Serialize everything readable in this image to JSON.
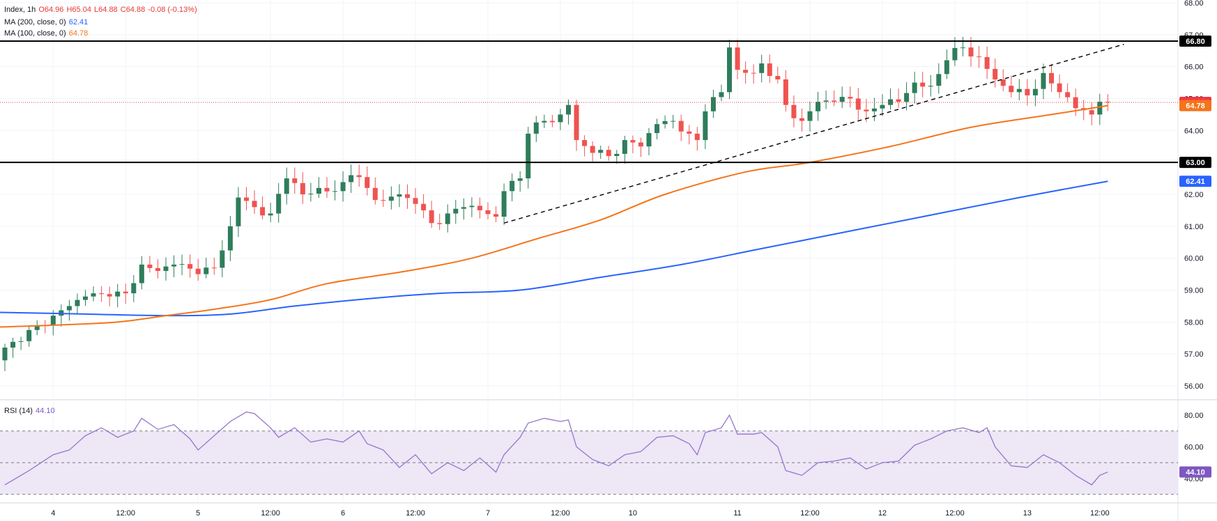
{
  "legend": {
    "symbol": "Index, 1h",
    "open": "O64.96",
    "high": "H65.04",
    "low": "L64.88",
    "close": "C64.88",
    "change": "-0.08 (-0.13%)",
    "ma200_label": "MA (200, close, 0)",
    "ma200_value": "62.41",
    "ma100_label": "MA (100, close, 0)",
    "ma100_value": "64.78",
    "rsi_label": "RSI (14)",
    "rsi_value": "44.10"
  },
  "chart_data": [
    {
      "type": "candlestick",
      "title": "",
      "y_ticks": [
        "56.00",
        "57.00",
        "58.00",
        "59.00",
        "60.00",
        "61.00",
        "62.00",
        "63.00",
        "64.00",
        "65.00",
        "66.00",
        "67.00",
        "68.00"
      ],
      "ylim": [
        55.6,
        68.0
      ],
      "x_ticks": [
        {
          "label": "4",
          "pos": 6
        },
        {
          "label": "12:00",
          "pos": 15
        },
        {
          "label": "5",
          "pos": 24
        },
        {
          "label": "12:00",
          "pos": 33
        },
        {
          "label": "6",
          "pos": 42
        },
        {
          "label": "12:00",
          "pos": 51
        },
        {
          "label": "7",
          "pos": 60
        },
        {
          "label": "12:00",
          "pos": 69
        },
        {
          "label": "10",
          "pos": 78
        },
        {
          "label": "11",
          "pos": 91
        },
        {
          "label": "12:00",
          "pos": 100
        },
        {
          "label": "12",
          "pos": 109
        },
        {
          "label": "12:00",
          "pos": 118
        },
        {
          "label": "13",
          "pos": 127
        },
        {
          "label": "12:00",
          "pos": 136
        }
      ],
      "horizontal_levels": [
        {
          "value": 66.8,
          "label": "66.80"
        },
        {
          "value": 63.0,
          "label": "63.00"
        }
      ],
      "current_price": {
        "value": 64.88,
        "label": "64.88",
        "color": "#f23645"
      },
      "price_labels": [
        {
          "value": 64.78,
          "label": "64.78",
          "color": "#f5741a"
        },
        {
          "value": 62.41,
          "label": "62.41",
          "color": "#2962ff"
        }
      ],
      "trendline": {
        "x1": 62,
        "y1": 61.1,
        "x2": 139,
        "y2": 66.7
      },
      "key_points": [
        {
          "i": 0,
          "v": 57.2
        },
        {
          "i": 2,
          "v": 57.4
        },
        {
          "i": 4,
          "v": 57.9
        },
        {
          "i": 6,
          "v": 58.2
        },
        {
          "i": 8,
          "v": 58.5
        },
        {
          "i": 10,
          "v": 58.8
        },
        {
          "i": 13,
          "v": 58.8
        },
        {
          "i": 15,
          "v": 58.9
        },
        {
          "i": 17,
          "v": 59.8
        },
        {
          "i": 19,
          "v": 59.6
        },
        {
          "i": 21,
          "v": 59.8
        },
        {
          "i": 24,
          "v": 59.5
        },
        {
          "i": 26,
          "v": 59.7
        },
        {
          "i": 28,
          "v": 61.0
        },
        {
          "i": 29,
          "v": 61.9
        },
        {
          "i": 31,
          "v": 61.6
        },
        {
          "i": 33,
          "v": 61.4
        },
        {
          "i": 35,
          "v": 62.5
        },
        {
          "i": 37,
          "v": 62.0
        },
        {
          "i": 39,
          "v": 62.2
        },
        {
          "i": 41,
          "v": 62.1
        },
        {
          "i": 43,
          "v": 62.6
        },
        {
          "i": 45,
          "v": 62.2
        },
        {
          "i": 47,
          "v": 61.8
        },
        {
          "i": 49,
          "v": 62.0
        },
        {
          "i": 51,
          "v": 61.7
        },
        {
          "i": 53,
          "v": 61.1
        },
        {
          "i": 55,
          "v": 61.4
        },
        {
          "i": 57,
          "v": 61.6
        },
        {
          "i": 59,
          "v": 61.5
        },
        {
          "i": 61,
          "v": 61.3
        },
        {
          "i": 62,
          "v": 62.1
        },
        {
          "i": 64,
          "v": 62.5
        },
        {
          "i": 65,
          "v": 63.9
        },
        {
          "i": 67,
          "v": 64.3
        },
        {
          "i": 69,
          "v": 64.5
        },
        {
          "i": 70,
          "v": 64.8
        },
        {
          "i": 71,
          "v": 63.7
        },
        {
          "i": 73,
          "v": 63.3
        },
        {
          "i": 75,
          "v": 63.2
        },
        {
          "i": 77,
          "v": 63.7
        },
        {
          "i": 79,
          "v": 63.5
        },
        {
          "i": 81,
          "v": 64.2
        },
        {
          "i": 83,
          "v": 64.3
        },
        {
          "i": 85,
          "v": 63.9
        },
        {
          "i": 86,
          "v": 63.7
        },
        {
          "i": 87,
          "v": 64.6
        },
        {
          "i": 89,
          "v": 65.2
        },
        {
          "i": 90,
          "v": 66.6
        },
        {
          "i": 91,
          "v": 65.9
        },
        {
          "i": 93,
          "v": 65.8
        },
        {
          "i": 94,
          "v": 66.1
        },
        {
          "i": 96,
          "v": 65.6
        },
        {
          "i": 97,
          "v": 64.8
        },
        {
          "i": 99,
          "v": 64.3
        },
        {
          "i": 101,
          "v": 64.9
        },
        {
          "i": 103,
          "v": 64.9
        },
        {
          "i": 105,
          "v": 65.0
        },
        {
          "i": 107,
          "v": 64.6
        },
        {
          "i": 109,
          "v": 64.8
        },
        {
          "i": 111,
          "v": 64.9
        },
        {
          "i": 113,
          "v": 65.5
        },
        {
          "i": 115,
          "v": 65.4
        },
        {
          "i": 117,
          "v": 66.2
        },
        {
          "i": 119,
          "v": 66.6
        },
        {
          "i": 121,
          "v": 66.3
        },
        {
          "i": 123,
          "v": 65.6
        },
        {
          "i": 125,
          "v": 65.2
        },
        {
          "i": 127,
          "v": 65.1
        },
        {
          "i": 129,
          "v": 65.8
        },
        {
          "i": 131,
          "v": 65.2
        },
        {
          "i": 133,
          "v": 64.7
        },
        {
          "i": 135,
          "v": 64.5
        },
        {
          "i": 136,
          "v": 64.9
        },
        {
          "i": 137,
          "v": 64.88
        }
      ],
      "ma100_points": [
        {
          "i": 0,
          "v": 57.85
        },
        {
          "i": 6,
          "v": 57.9
        },
        {
          "i": 14,
          "v": 58.0
        },
        {
          "i": 20,
          "v": 58.2
        },
        {
          "i": 26,
          "v": 58.4
        },
        {
          "i": 33,
          "v": 58.7
        },
        {
          "i": 40,
          "v": 59.2
        },
        {
          "i": 50,
          "v": 59.6
        },
        {
          "i": 58,
          "v": 60.0
        },
        {
          "i": 66,
          "v": 60.6
        },
        {
          "i": 74,
          "v": 61.2
        },
        {
          "i": 82,
          "v": 62.0
        },
        {
          "i": 92,
          "v": 62.7
        },
        {
          "i": 100,
          "v": 63.0
        },
        {
          "i": 110,
          "v": 63.5
        },
        {
          "i": 120,
          "v": 64.1
        },
        {
          "i": 130,
          "v": 64.5
        },
        {
          "i": 137,
          "v": 64.78
        }
      ],
      "ma200_points": [
        {
          "i": 0,
          "v": 58.3
        },
        {
          "i": 10,
          "v": 58.25
        },
        {
          "i": 20,
          "v": 58.2
        },
        {
          "i": 28,
          "v": 58.25
        },
        {
          "i": 36,
          "v": 58.5
        },
        {
          "i": 46,
          "v": 58.75
        },
        {
          "i": 54,
          "v": 58.9
        },
        {
          "i": 64,
          "v": 59.0
        },
        {
          "i": 74,
          "v": 59.4
        },
        {
          "i": 84,
          "v": 59.8
        },
        {
          "i": 94,
          "v": 60.3
        },
        {
          "i": 106,
          "v": 60.9
        },
        {
          "i": 116,
          "v": 61.4
        },
        {
          "i": 126,
          "v": 61.9
        },
        {
          "i": 137,
          "v": 62.41
        }
      ]
    },
    {
      "type": "line",
      "title": "",
      "name": "",
      "y_ticks": [
        "40.00",
        "60.00",
        "80.00"
      ],
      "ylim": [
        32,
        86
      ],
      "band": {
        "upper": 70,
        "middle": 50,
        "lower": 30
      },
      "last_value_label": "44.10",
      "points": [
        {
          "i": 0,
          "v": 36
        },
        {
          "i": 3,
          "v": 45
        },
        {
          "i": 6,
          "v": 55
        },
        {
          "i": 8,
          "v": 58
        },
        {
          "i": 10,
          "v": 67
        },
        {
          "i": 12,
          "v": 72
        },
        {
          "i": 14,
          "v": 66
        },
        {
          "i": 16,
          "v": 70
        },
        {
          "i": 17,
          "v": 78
        },
        {
          "i": 19,
          "v": 71
        },
        {
          "i": 21,
          "v": 74
        },
        {
          "i": 23,
          "v": 65
        },
        {
          "i": 24,
          "v": 58
        },
        {
          "i": 26,
          "v": 67
        },
        {
          "i": 28,
          "v": 76
        },
        {
          "i": 30,
          "v": 82
        },
        {
          "i": 31,
          "v": 81
        },
        {
          "i": 33,
          "v": 72
        },
        {
          "i": 34,
          "v": 66
        },
        {
          "i": 36,
          "v": 72
        },
        {
          "i": 38,
          "v": 63
        },
        {
          "i": 40,
          "v": 65
        },
        {
          "i": 42,
          "v": 63
        },
        {
          "i": 44,
          "v": 70
        },
        {
          "i": 45,
          "v": 62
        },
        {
          "i": 47,
          "v": 58
        },
        {
          "i": 49,
          "v": 47
        },
        {
          "i": 51,
          "v": 55
        },
        {
          "i": 53,
          "v": 43
        },
        {
          "i": 55,
          "v": 50
        },
        {
          "i": 57,
          "v": 45
        },
        {
          "i": 59,
          "v": 53
        },
        {
          "i": 61,
          "v": 44
        },
        {
          "i": 62,
          "v": 55
        },
        {
          "i": 64,
          "v": 66
        },
        {
          "i": 65,
          "v": 75
        },
        {
          "i": 67,
          "v": 78
        },
        {
          "i": 69,
          "v": 76
        },
        {
          "i": 70,
          "v": 77
        },
        {
          "i": 71,
          "v": 60
        },
        {
          "i": 73,
          "v": 52
        },
        {
          "i": 75,
          "v": 48
        },
        {
          "i": 77,
          "v": 55
        },
        {
          "i": 79,
          "v": 57
        },
        {
          "i": 81,
          "v": 66
        },
        {
          "i": 83,
          "v": 67
        },
        {
          "i": 85,
          "v": 62
        },
        {
          "i": 86,
          "v": 55
        },
        {
          "i": 87,
          "v": 69
        },
        {
          "i": 89,
          "v": 72
        },
        {
          "i": 90,
          "v": 80
        },
        {
          "i": 91,
          "v": 68
        },
        {
          "i": 93,
          "v": 68
        },
        {
          "i": 94,
          "v": 69
        },
        {
          "i": 96,
          "v": 60
        },
        {
          "i": 97,
          "v": 45
        },
        {
          "i": 99,
          "v": 42
        },
        {
          "i": 101,
          "v": 50
        },
        {
          "i": 103,
          "v": 51
        },
        {
          "i": 105,
          "v": 53
        },
        {
          "i": 107,
          "v": 46
        },
        {
          "i": 109,
          "v": 50
        },
        {
          "i": 111,
          "v": 51
        },
        {
          "i": 113,
          "v": 61
        },
        {
          "i": 115,
          "v": 65
        },
        {
          "i": 117,
          "v": 70
        },
        {
          "i": 119,
          "v": 72
        },
        {
          "i": 121,
          "v": 69
        },
        {
          "i": 122,
          "v": 72
        },
        {
          "i": 123,
          "v": 60
        },
        {
          "i": 125,
          "v": 48
        },
        {
          "i": 127,
          "v": 47
        },
        {
          "i": 129,
          "v": 55
        },
        {
          "i": 131,
          "v": 50
        },
        {
          "i": 133,
          "v": 42
        },
        {
          "i": 135,
          "v": 36
        },
        {
          "i": 136,
          "v": 42
        },
        {
          "i": 137,
          "v": 44.1
        }
      ]
    }
  ],
  "colors": {
    "up": "#26a69a",
    "up_fill": "#2e7d5b",
    "down": "#ef5350",
    "ma100": "#f5741a",
    "ma200": "#2962ff",
    "rsi": "#9575cd",
    "rsi_band": "#ede7f6",
    "grid": "#f0f3fa",
    "axis_text": "#131722"
  }
}
